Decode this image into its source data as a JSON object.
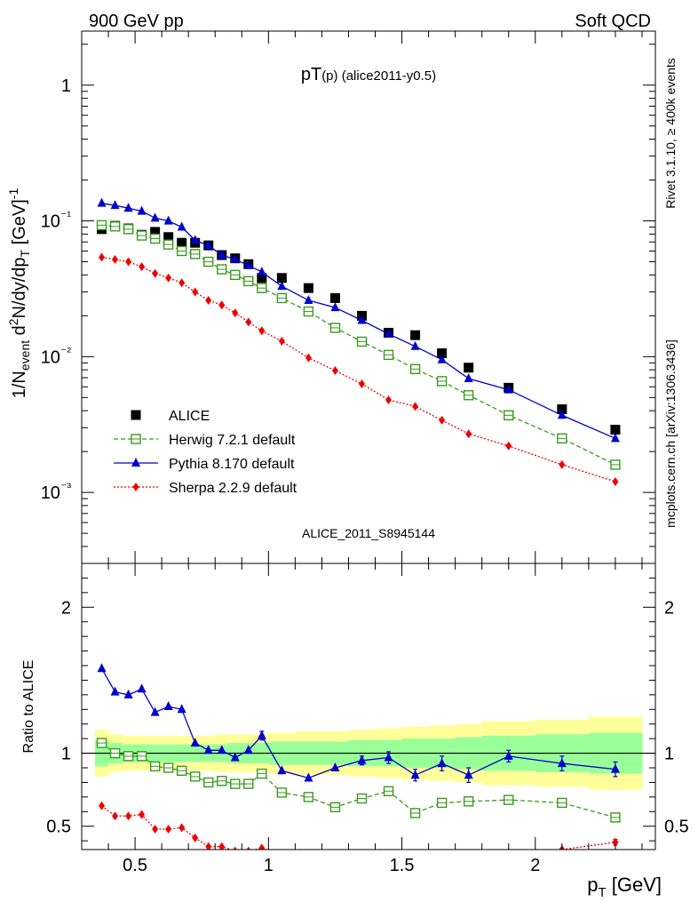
{
  "header": {
    "left": "900 GeV pp",
    "right": "Soft QCD",
    "plot_label": "ALICE_2011_S8945144",
    "side_top": "Rivet 3.1.10, ≥ 400k events",
    "side_bottom": "mcplots.cern.ch [arXiv:1306.3436]"
  },
  "colors": {
    "alice": "#000000",
    "herwig": "#3a9a1e",
    "pythia": "#0000cc",
    "sherpa": "#ee0000",
    "band_inner": "#99ff99",
    "band_outer": "#ffff99"
  },
  "chart_data": [
    {
      "type": "scatter",
      "title_main": "pT",
      "title_sub": "(p)",
      "title_rest": " (alice2011-y0.5)",
      "ylabel": "1/N_event d²N/dy/dp_T [GeV]⁻¹",
      "yscale": "log",
      "xlim": [
        0.3,
        2.45
      ],
      "ylim": [
        0.0003,
        2.5
      ],
      "ytick_labels": [
        "1",
        "10⁻¹",
        "10⁻²",
        "10⁻³"
      ],
      "ytick_values": [
        1,
        0.1,
        0.01,
        0.001
      ],
      "legend_position": "bottom-left",
      "x": [
        0.375,
        0.425,
        0.475,
        0.525,
        0.575,
        0.625,
        0.675,
        0.725,
        0.775,
        0.825,
        0.875,
        0.925,
        0.975,
        1.05,
        1.15,
        1.25,
        1.35,
        1.45,
        1.55,
        1.65,
        1.75,
        1.9,
        2.1,
        2.3
      ],
      "series": [
        {
          "name": "ALICE",
          "key": "alice",
          "marker": "square-filled",
          "line": "none",
          "values": [
            0.087,
            0.092,
            0.088,
            0.079,
            0.083,
            0.076,
            0.069,
            0.069,
            0.066,
            0.056,
            0.053,
            0.048,
            0.038,
            0.038,
            0.032,
            0.027,
            0.02,
            0.015,
            0.0144,
            0.0106,
            0.0083,
            0.0059,
            0.0041,
            0.0029
          ]
        },
        {
          "name": "Herwig 7.2.1 default",
          "key": "herwig",
          "marker": "square-open",
          "line": "dashed",
          "values": [
            0.093,
            0.091,
            0.087,
            0.078,
            0.074,
            0.067,
            0.06,
            0.057,
            0.05,
            0.044,
            0.04,
            0.036,
            0.032,
            0.027,
            0.0215,
            0.0163,
            0.0129,
            0.0103,
            0.0081,
            0.0066,
            0.0052,
            0.0037,
            0.0025,
            0.0016
          ]
        },
        {
          "name": "Pythia 8.170 default",
          "key": "pythia",
          "marker": "triangle-filled",
          "line": "solid",
          "values": [
            0.135,
            0.13,
            0.124,
            0.118,
            0.105,
            0.1,
            0.09,
            0.072,
            0.066,
            0.056,
            0.052,
            0.047,
            0.042,
            0.033,
            0.026,
            0.023,
            0.0185,
            0.0147,
            0.0119,
            0.0095,
            0.0069,
            0.0057,
            0.0037,
            0.0025
          ]
        },
        {
          "name": "Sherpa 2.2.9 default",
          "key": "sherpa",
          "marker": "diamond-filled",
          "line": "dotted",
          "values": [
            0.054,
            0.052,
            0.05,
            0.046,
            0.041,
            0.038,
            0.035,
            0.03,
            0.026,
            0.024,
            0.021,
            0.018,
            0.0155,
            0.013,
            0.0098,
            0.0079,
            0.0063,
            0.0048,
            0.0043,
            0.0034,
            0.0027,
            0.0022,
            0.0016,
            0.0012
          ]
        }
      ]
    },
    {
      "type": "scatter",
      "ylabel": "Ratio to ALICE",
      "xlabel": "p_T [GeV]",
      "xlim": [
        0.3,
        2.45
      ],
      "ylim": [
        0.34,
        2.3
      ],
      "ytick_values": [
        0.5,
        1,
        2
      ],
      "ytick_labels": [
        "0.5",
        "1",
        "2"
      ],
      "xtick_values": [
        0.5,
        1,
        1.5,
        2
      ],
      "xtick_labels": [
        "0.5",
        "1",
        "1.5",
        "2"
      ],
      "reference_line": 1,
      "x": [
        0.375,
        0.425,
        0.475,
        0.525,
        0.575,
        0.625,
        0.675,
        0.725,
        0.775,
        0.825,
        0.875,
        0.925,
        0.975,
        1.05,
        1.15,
        1.25,
        1.35,
        1.45,
        1.55,
        1.65,
        1.75,
        1.9,
        2.1,
        2.3
      ],
      "band_edges": [
        0.35,
        0.4,
        0.45,
        0.5,
        0.55,
        0.6,
        0.65,
        0.7,
        0.75,
        0.8,
        0.85,
        0.9,
        0.95,
        1.0,
        1.1,
        1.2,
        1.3,
        1.4,
        1.5,
        1.6,
        1.7,
        1.8,
        2.0,
        2.2,
        2.4
      ],
      "band_inner": [
        0.09,
        0.07,
        0.06,
        0.06,
        0.06,
        0.06,
        0.06,
        0.06,
        0.06,
        0.06,
        0.07,
        0.07,
        0.07,
        0.08,
        0.08,
        0.08,
        0.09,
        0.09,
        0.1,
        0.1,
        0.11,
        0.12,
        0.13,
        0.14
      ],
      "band_outer": [
        0.16,
        0.13,
        0.12,
        0.12,
        0.12,
        0.12,
        0.12,
        0.12,
        0.12,
        0.13,
        0.13,
        0.13,
        0.13,
        0.14,
        0.15,
        0.15,
        0.16,
        0.17,
        0.18,
        0.19,
        0.2,
        0.22,
        0.23,
        0.25
      ],
      "series": [
        {
          "name": "Herwig 7.2.1 default",
          "key": "herwig",
          "marker": "square-open",
          "line": "dashed",
          "values": [
            1.07,
            1.0,
            0.98,
            0.98,
            0.91,
            0.9,
            0.88,
            0.84,
            0.8,
            0.81,
            0.79,
            0.79,
            0.86,
            0.73,
            0.7,
            0.63,
            0.69,
            0.74,
            0.59,
            0.66,
            0.67,
            0.68,
            0.66,
            0.56
          ],
          "errors": [
            0,
            0,
            0,
            0,
            0,
            0,
            0,
            0,
            0,
            0,
            0,
            0,
            0,
            0,
            0,
            0,
            0,
            0,
            0,
            0,
            0,
            0,
            0,
            0.03
          ]
        },
        {
          "name": "Pythia 8.170 default",
          "key": "pythia",
          "marker": "triangle-filled",
          "line": "solid",
          "values": [
            1.58,
            1.42,
            1.4,
            1.44,
            1.28,
            1.32,
            1.3,
            1.07,
            1.02,
            1.02,
            0.97,
            1.02,
            1.12,
            0.88,
            0.83,
            0.9,
            0.95,
            0.97,
            0.85,
            0.93,
            0.85,
            0.98,
            0.93,
            0.89
          ],
          "errors": [
            0,
            0,
            0,
            0,
            0,
            0,
            0,
            0,
            0,
            0,
            0,
            0,
            0.03,
            0,
            0,
            0,
            0.03,
            0.04,
            0.04,
            0.05,
            0.05,
            0.04,
            0.05,
            0.05
          ]
        },
        {
          "name": "Sherpa 2.2.9 default",
          "key": "sherpa",
          "marker": "diamond-filled",
          "line": "dotted",
          "values": [
            0.64,
            0.57,
            0.57,
            0.58,
            0.48,
            0.48,
            0.49,
            0.42,
            0.36,
            0.36,
            0.33,
            0.33,
            0.35,
            0.31,
            0.28,
            0.26,
            0.26,
            0.27,
            0.27,
            0.29,
            0.3,
            0.32,
            0.34,
            0.39
          ],
          "errors": [
            0,
            0,
            0,
            0,
            0,
            0,
            0,
            0,
            0,
            0,
            0,
            0,
            0,
            0,
            0,
            0,
            0,
            0,
            0,
            0,
            0,
            0,
            0,
            0.02
          ]
        }
      ]
    }
  ]
}
